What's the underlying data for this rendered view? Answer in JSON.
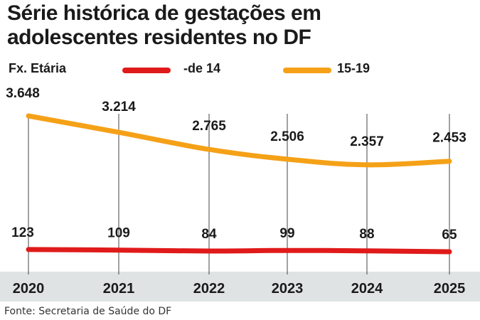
{
  "title_lines": [
    "Série histórica de gestações em",
    "adolescentes residentes no DF"
  ],
  "legend": {
    "title": "Fx. Etária",
    "items": [
      {
        "label": "-de 14",
        "color": "#e01a1a"
      },
      {
        "label": "15-19",
        "color": "#f5a118"
      }
    ]
  },
  "source": "Fonte: Secretaria de Saúde do DF",
  "colors": {
    "axis_band": "#dfe3e3",
    "gridline": "#444444"
  },
  "chart_data": {
    "type": "line",
    "title": "Série histórica de gestações em adolescentes residentes no DF",
    "xlabel": "",
    "ylabel": "",
    "x": [
      "2020",
      "2021",
      "2022",
      "2023",
      "2024",
      "2025"
    ],
    "series": [
      {
        "name": "15-19",
        "color": "#f5a118",
        "values": [
          3648,
          3214,
          2765,
          2506,
          2357,
          2453
        ],
        "labels": [
          "3.648",
          "3.214",
          "2.765",
          "2.506",
          "2.357",
          "2.453"
        ]
      },
      {
        "name": "-de 14",
        "color": "#e01a1a",
        "values": [
          123,
          109,
          84,
          99,
          88,
          65
        ],
        "labels": [
          "123",
          "109",
          "84",
          "99",
          "88",
          "65"
        ]
      }
    ],
    "gridlines": "vertical",
    "legend_position": "top"
  }
}
